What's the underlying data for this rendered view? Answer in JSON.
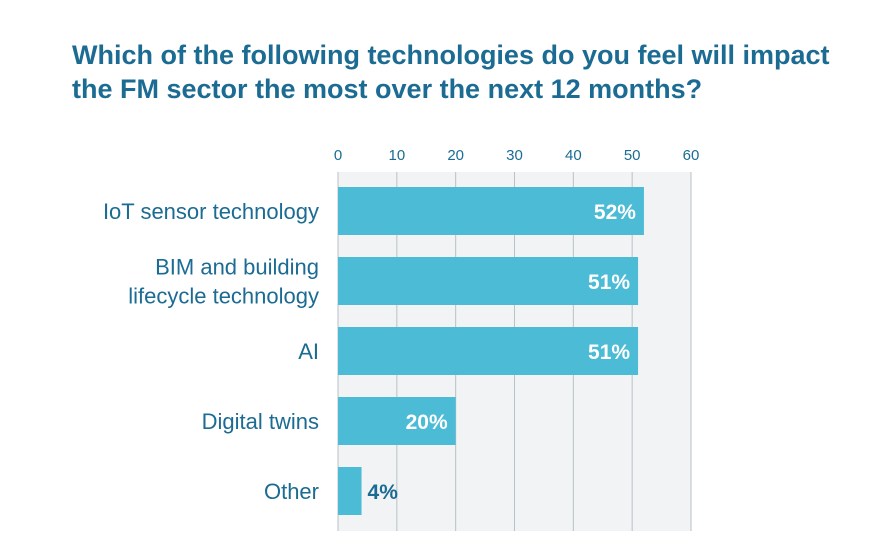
{
  "chart_data": {
    "type": "bar",
    "orientation": "horizontal",
    "title": "Which of the following technologies do you feel will impact the FM sector the most over the next 12 months?",
    "categories": [
      [
        "IoT sensor technology"
      ],
      [
        "BIM and building",
        "lifecycle technology"
      ],
      [
        "AI"
      ],
      [
        "Digital twins"
      ],
      [
        "Other"
      ]
    ],
    "values": [
      52,
      51,
      51,
      20,
      4
    ],
    "data_labels": [
      "52%",
      "51%",
      "51%",
      "20%",
      "4%"
    ],
    "xlim": [
      0,
      60
    ],
    "xticks": [
      0,
      10,
      20,
      30,
      40,
      50,
      60
    ],
    "axis_position": "top",
    "grid": true,
    "xlabel": "",
    "ylabel": ""
  },
  "colors": {
    "bar": "#4cbbd6",
    "text": "#1b6b93",
    "grid": "#b9c2c7",
    "plot_background": "#f1f3f4",
    "label_inside": "#ffffff",
    "label_outside": "#1b6b93"
  }
}
